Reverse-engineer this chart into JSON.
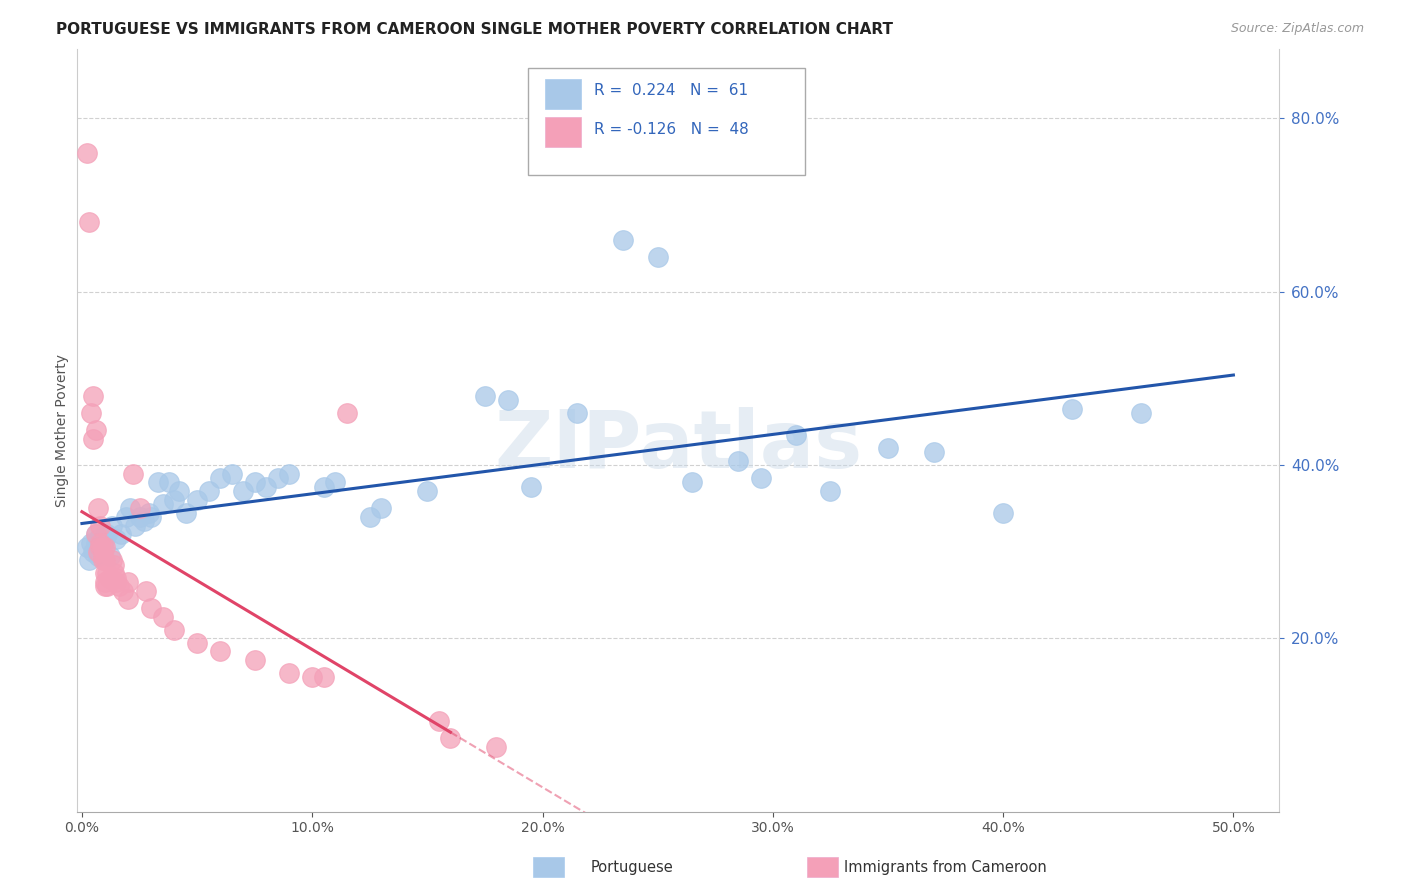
{
  "title": "PORTUGUESE VS IMMIGRANTS FROM CAMEROON SINGLE MOTHER POVERTY CORRELATION CHART",
  "source": "Source: ZipAtlas.com",
  "ylabel": "Single Mother Poverty",
  "xlim": [
    -0.002,
    0.52
  ],
  "ylim": [
    0.0,
    0.88
  ],
  "xtick_vals": [
    0.0,
    0.1,
    0.2,
    0.3,
    0.4,
    0.5
  ],
  "ytick_vals": [
    0.2,
    0.4,
    0.6,
    0.8
  ],
  "portuguese_color": "#a8c8e8",
  "cameroon_color": "#f4a0b8",
  "trendline_portuguese_color": "#2255aa",
  "trendline_cameroon_color": "#e04468",
  "watermark_text": "ZIPatlas",
  "background_color": "#ffffff",
  "grid_color": "#cccccc",
  "legend_blue_label": "R =  0.224   N =  61",
  "legend_pink_label": "R = -0.126   N =  48",
  "portuguese_points": [
    [
      0.002,
      0.305
    ],
    [
      0.003,
      0.29
    ],
    [
      0.004,
      0.31
    ],
    [
      0.005,
      0.3
    ],
    [
      0.006,
      0.31
    ],
    [
      0.006,
      0.32
    ],
    [
      0.007,
      0.315
    ],
    [
      0.007,
      0.295
    ],
    [
      0.008,
      0.305
    ],
    [
      0.008,
      0.298
    ],
    [
      0.009,
      0.31
    ],
    [
      0.01,
      0.315
    ],
    [
      0.01,
      0.32
    ],
    [
      0.011,
      0.32
    ],
    [
      0.012,
      0.295
    ],
    [
      0.013,
      0.33
    ],
    [
      0.015,
      0.315
    ],
    [
      0.017,
      0.32
    ],
    [
      0.019,
      0.34
    ],
    [
      0.021,
      0.35
    ],
    [
      0.023,
      0.33
    ],
    [
      0.025,
      0.34
    ],
    [
      0.027,
      0.335
    ],
    [
      0.029,
      0.345
    ],
    [
      0.03,
      0.34
    ],
    [
      0.033,
      0.38
    ],
    [
      0.035,
      0.355
    ],
    [
      0.038,
      0.38
    ],
    [
      0.04,
      0.36
    ],
    [
      0.042,
      0.37
    ],
    [
      0.045,
      0.345
    ],
    [
      0.05,
      0.36
    ],
    [
      0.055,
      0.37
    ],
    [
      0.06,
      0.385
    ],
    [
      0.065,
      0.39
    ],
    [
      0.07,
      0.37
    ],
    [
      0.075,
      0.38
    ],
    [
      0.08,
      0.375
    ],
    [
      0.085,
      0.385
    ],
    [
      0.09,
      0.39
    ],
    [
      0.105,
      0.375
    ],
    [
      0.11,
      0.38
    ],
    [
      0.125,
      0.34
    ],
    [
      0.13,
      0.35
    ],
    [
      0.15,
      0.37
    ],
    [
      0.175,
      0.48
    ],
    [
      0.185,
      0.475
    ],
    [
      0.195,
      0.375
    ],
    [
      0.215,
      0.46
    ],
    [
      0.235,
      0.66
    ],
    [
      0.25,
      0.64
    ],
    [
      0.265,
      0.38
    ],
    [
      0.285,
      0.405
    ],
    [
      0.295,
      0.385
    ],
    [
      0.31,
      0.435
    ],
    [
      0.325,
      0.37
    ],
    [
      0.35,
      0.42
    ],
    [
      0.37,
      0.415
    ],
    [
      0.4,
      0.345
    ],
    [
      0.43,
      0.465
    ],
    [
      0.46,
      0.46
    ]
  ],
  "cameroon_points": [
    [
      0.002,
      0.76
    ],
    [
      0.003,
      0.68
    ],
    [
      0.004,
      0.46
    ],
    [
      0.005,
      0.48
    ],
    [
      0.005,
      0.43
    ],
    [
      0.006,
      0.44
    ],
    [
      0.006,
      0.32
    ],
    [
      0.007,
      0.35
    ],
    [
      0.007,
      0.3
    ],
    [
      0.008,
      0.33
    ],
    [
      0.008,
      0.31
    ],
    [
      0.008,
      0.305
    ],
    [
      0.009,
      0.305
    ],
    [
      0.009,
      0.295
    ],
    [
      0.009,
      0.29
    ],
    [
      0.01,
      0.305
    ],
    [
      0.01,
      0.29
    ],
    [
      0.01,
      0.275
    ],
    [
      0.01,
      0.265
    ],
    [
      0.01,
      0.26
    ],
    [
      0.011,
      0.275
    ],
    [
      0.011,
      0.26
    ],
    [
      0.012,
      0.27
    ],
    [
      0.013,
      0.29
    ],
    [
      0.014,
      0.285
    ],
    [
      0.014,
      0.275
    ],
    [
      0.015,
      0.27
    ],
    [
      0.015,
      0.265
    ],
    [
      0.016,
      0.26
    ],
    [
      0.018,
      0.255
    ],
    [
      0.02,
      0.265
    ],
    [
      0.02,
      0.245
    ],
    [
      0.022,
      0.39
    ],
    [
      0.025,
      0.35
    ],
    [
      0.028,
      0.255
    ],
    [
      0.03,
      0.235
    ],
    [
      0.035,
      0.225
    ],
    [
      0.04,
      0.21
    ],
    [
      0.05,
      0.195
    ],
    [
      0.06,
      0.185
    ],
    [
      0.075,
      0.175
    ],
    [
      0.09,
      0.16
    ],
    [
      0.1,
      0.155
    ],
    [
      0.105,
      0.155
    ],
    [
      0.115,
      0.46
    ],
    [
      0.155,
      0.105
    ],
    [
      0.16,
      0.085
    ],
    [
      0.18,
      0.075
    ]
  ]
}
